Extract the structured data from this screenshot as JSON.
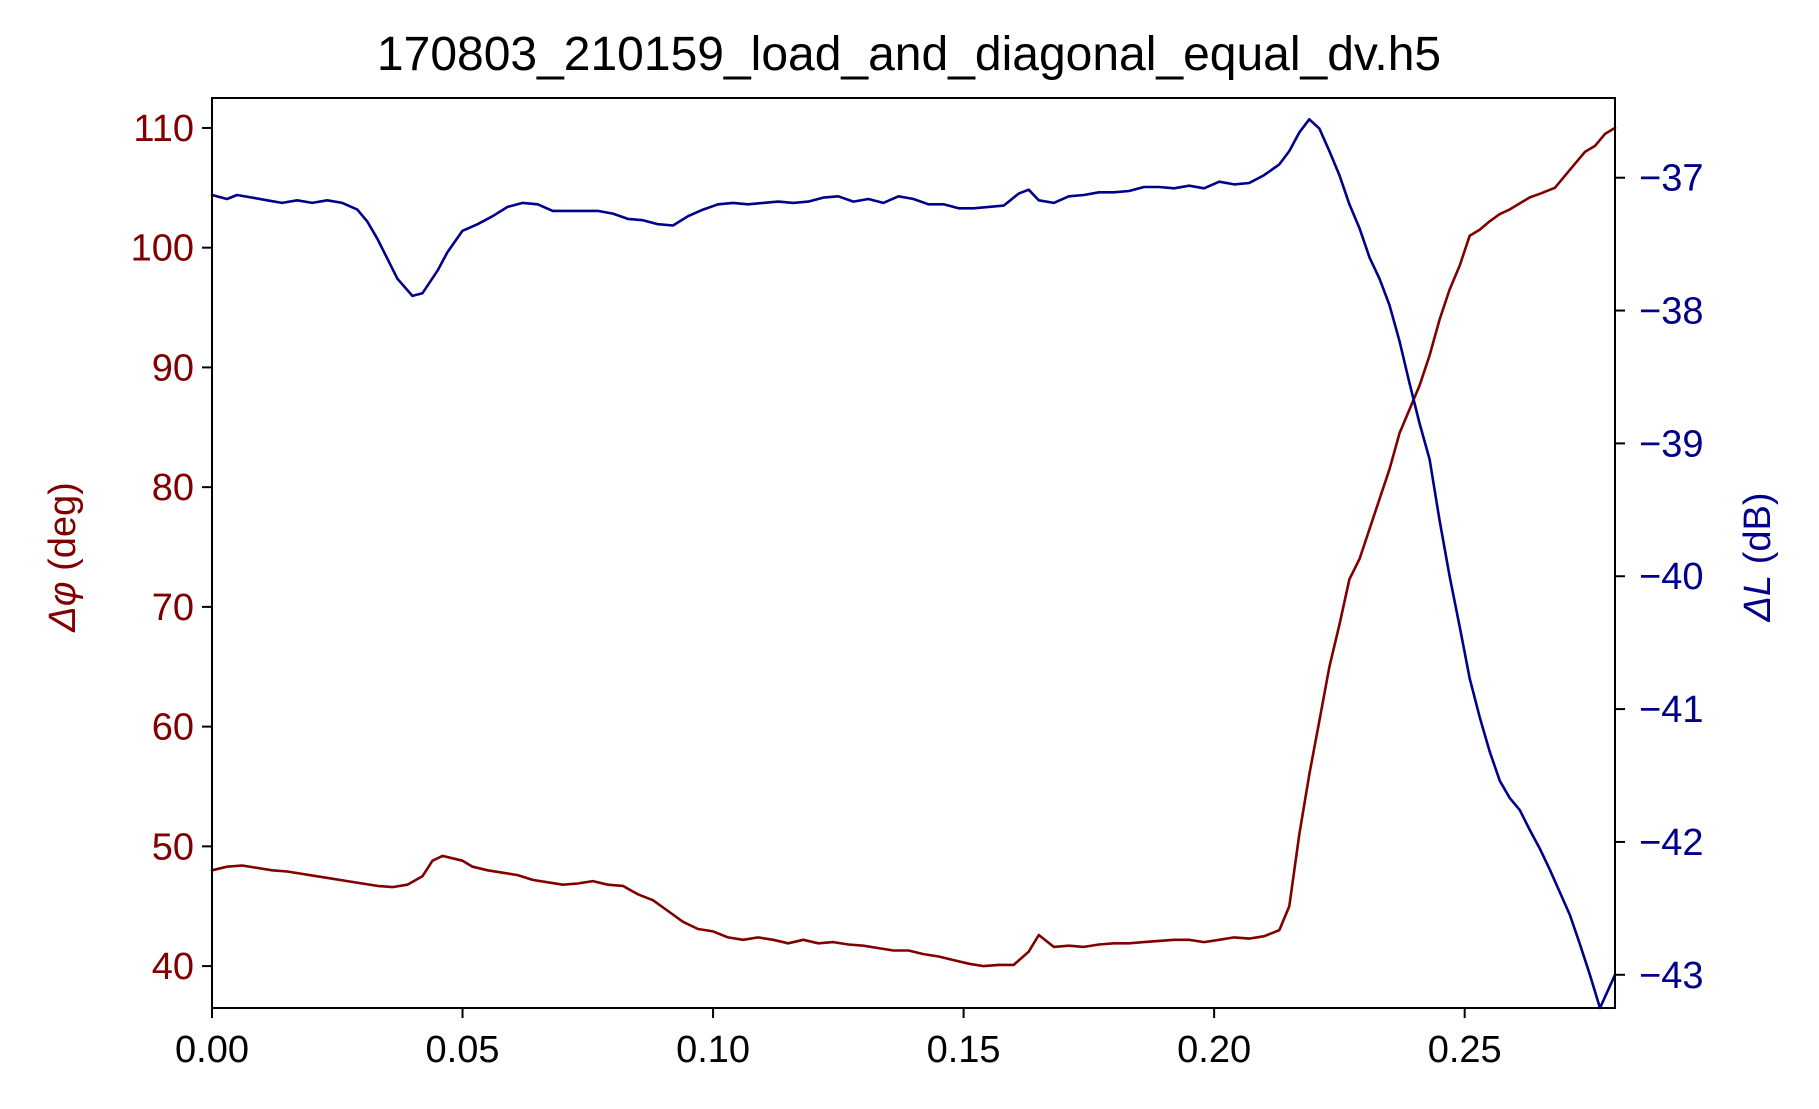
{
  "chart_data": {
    "type": "line",
    "title": "170803_210159_load_and_diagonal_equal_dv.h5",
    "xlabel": "",
    "xlim": [
      0.0,
      0.28
    ],
    "x_ticks": [
      0.0,
      0.05,
      0.1,
      0.15,
      0.2,
      0.25
    ],
    "x_tick_labels": [
      "0.00",
      "0.05",
      "0.10",
      "0.15",
      "0.20",
      "0.25"
    ],
    "left_axis": {
      "label_prefix": "Δφ",
      "label_suffix": " (deg)",
      "ylim": [
        36.5,
        112.5
      ],
      "ticks": [
        40,
        50,
        60,
        70,
        80,
        90,
        100,
        110
      ],
      "tick_labels": [
        "40",
        "50",
        "60",
        "70",
        "80",
        "90",
        "100",
        "110"
      ],
      "color": "#800000"
    },
    "right_axis": {
      "label_prefix": "ΔL",
      "label_suffix": " (dB)",
      "ylim": [
        -43.25,
        -36.4
      ],
      "ticks": [
        -43,
        -42,
        -41,
        -40,
        -39,
        -38,
        -37
      ],
      "tick_labels": [
        "−43",
        "−42",
        "−41",
        "−40",
        "−39",
        "−38",
        "−37"
      ],
      "color": "#00008b"
    },
    "grid": false,
    "series": [
      {
        "axis": "left",
        "color": "#800000",
        "x": [
          0.0,
          0.003,
          0.006,
          0.009,
          0.012,
          0.015,
          0.018,
          0.021,
          0.024,
          0.027,
          0.03,
          0.033,
          0.036,
          0.039,
          0.042,
          0.044,
          0.046,
          0.048,
          0.05,
          0.052,
          0.055,
          0.058,
          0.061,
          0.064,
          0.067,
          0.07,
          0.073,
          0.076,
          0.079,
          0.082,
          0.085,
          0.088,
          0.091,
          0.094,
          0.097,
          0.1,
          0.103,
          0.106,
          0.109,
          0.112,
          0.115,
          0.118,
          0.121,
          0.124,
          0.127,
          0.13,
          0.133,
          0.136,
          0.139,
          0.142,
          0.145,
          0.148,
          0.151,
          0.154,
          0.157,
          0.16,
          0.163,
          0.165,
          0.168,
          0.171,
          0.174,
          0.177,
          0.18,
          0.183,
          0.186,
          0.189,
          0.192,
          0.195,
          0.198,
          0.201,
          0.204,
          0.207,
          0.21,
          0.213,
          0.215,
          0.217,
          0.219,
          0.221,
          0.223,
          0.225,
          0.227,
          0.229,
          0.231,
          0.233,
          0.235,
          0.237,
          0.239,
          0.241,
          0.243,
          0.245,
          0.247,
          0.249,
          0.251,
          0.253,
          0.255,
          0.257,
          0.259,
          0.261,
          0.263,
          0.265,
          0.268,
          0.271,
          0.274,
          0.276,
          0.278,
          0.28
        ],
        "values": [
          48.0,
          48.3,
          48.4,
          48.2,
          48.0,
          47.9,
          47.7,
          47.5,
          47.3,
          47.1,
          46.9,
          46.7,
          46.6,
          46.8,
          47.5,
          48.8,
          49.2,
          49.0,
          48.8,
          48.3,
          48.0,
          47.8,
          47.6,
          47.2,
          47.0,
          46.8,
          46.9,
          47.1,
          46.8,
          46.7,
          46.0,
          45.5,
          44.6,
          43.7,
          43.1,
          42.9,
          42.4,
          42.2,
          42.4,
          42.2,
          41.9,
          42.2,
          41.9,
          42.0,
          41.8,
          41.7,
          41.5,
          41.3,
          41.3,
          41.0,
          40.8,
          40.5,
          40.2,
          40.0,
          40.1,
          40.1,
          41.2,
          42.6,
          41.6,
          41.7,
          41.6,
          41.8,
          41.9,
          41.9,
          42.0,
          42.1,
          42.2,
          42.2,
          42.0,
          42.2,
          42.4,
          42.3,
          42.5,
          43.0,
          45.0,
          51.0,
          56.0,
          60.5,
          65.0,
          68.5,
          72.3,
          74.0,
          76.5,
          79.0,
          81.5,
          84.5,
          86.5,
          88.5,
          91.0,
          94.0,
          96.5,
          98.5,
          101.0,
          101.5,
          102.2,
          102.8,
          103.2,
          103.7,
          104.2,
          104.5,
          105.0,
          106.5,
          108.0,
          108.5,
          109.5,
          110.0
        ]
      },
      {
        "axis": "right",
        "color": "#00008b",
        "x": [
          0.0,
          0.003,
          0.005,
          0.008,
          0.011,
          0.014,
          0.017,
          0.02,
          0.023,
          0.026,
          0.029,
          0.031,
          0.033,
          0.035,
          0.037,
          0.04,
          0.042,
          0.045,
          0.047,
          0.05,
          0.053,
          0.056,
          0.059,
          0.062,
          0.065,
          0.068,
          0.071,
          0.074,
          0.077,
          0.08,
          0.083,
          0.086,
          0.089,
          0.092,
          0.095,
          0.098,
          0.101,
          0.104,
          0.107,
          0.11,
          0.113,
          0.116,
          0.119,
          0.122,
          0.125,
          0.128,
          0.131,
          0.134,
          0.137,
          0.14,
          0.143,
          0.146,
          0.149,
          0.152,
          0.155,
          0.158,
          0.161,
          0.163,
          0.165,
          0.168,
          0.171,
          0.174,
          0.177,
          0.18,
          0.183,
          0.186,
          0.189,
          0.192,
          0.195,
          0.198,
          0.201,
          0.204,
          0.207,
          0.21,
          0.213,
          0.215,
          0.217,
          0.219,
          0.221,
          0.223,
          0.225,
          0.227,
          0.229,
          0.231,
          0.233,
          0.235,
          0.237,
          0.239,
          0.241,
          0.243,
          0.245,
          0.247,
          0.249,
          0.251,
          0.253,
          0.255,
          0.257,
          0.259,
          0.261,
          0.263,
          0.265,
          0.267,
          0.269,
          0.271,
          0.273,
          0.275,
          0.277,
          0.28
        ],
        "values": [
          -37.13,
          -37.16,
          -37.13,
          -37.15,
          -37.17,
          -37.19,
          -37.17,
          -37.19,
          -37.17,
          -37.19,
          -37.24,
          -37.33,
          -37.46,
          -37.61,
          -37.76,
          -37.89,
          -37.87,
          -37.7,
          -37.56,
          -37.4,
          -37.35,
          -37.29,
          -37.22,
          -37.19,
          -37.2,
          -37.25,
          -37.25,
          -37.25,
          -37.25,
          -37.27,
          -37.31,
          -37.32,
          -37.35,
          -37.36,
          -37.29,
          -37.24,
          -37.2,
          -37.19,
          -37.2,
          -37.19,
          -37.18,
          -37.19,
          -37.18,
          -37.15,
          -37.14,
          -37.18,
          -37.16,
          -37.19,
          -37.14,
          -37.16,
          -37.2,
          -37.2,
          -37.23,
          -37.23,
          -37.22,
          -37.21,
          -37.12,
          -37.09,
          -37.17,
          -37.19,
          -37.14,
          -37.13,
          -37.11,
          -37.11,
          -37.1,
          -37.07,
          -37.07,
          -37.08,
          -37.06,
          -37.08,
          -37.03,
          -37.05,
          -37.04,
          -36.98,
          -36.9,
          -36.8,
          -36.66,
          -36.56,
          -36.63,
          -36.8,
          -36.98,
          -37.2,
          -37.38,
          -37.6,
          -37.76,
          -37.96,
          -38.23,
          -38.55,
          -38.85,
          -39.12,
          -39.58,
          -40.0,
          -40.38,
          -40.77,
          -41.06,
          -41.32,
          -41.54,
          -41.67,
          -41.76,
          -41.91,
          -42.05,
          -42.21,
          -42.38,
          -42.55,
          -42.77,
          -43.0,
          -43.25,
          -43.0
        ]
      }
    ]
  }
}
